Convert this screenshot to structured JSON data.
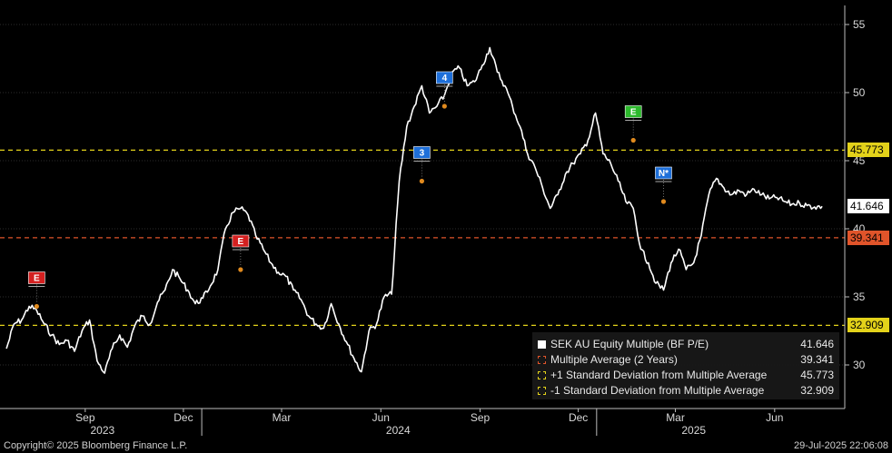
{
  "chart_data": {
    "type": "line",
    "y_ticks": [
      30,
      35,
      40,
      45,
      50,
      55
    ],
    "ylim": [
      26.8,
      56.4
    ],
    "x_month_labels": [
      "Sep",
      "Dec",
      "Mar",
      "Jun",
      "Sep",
      "Dec",
      "Mar",
      "Jun"
    ],
    "x_year_labels": [
      "2023",
      "2024",
      "2025"
    ],
    "colors": {
      "line": "#ffffff",
      "average": "#e0542a",
      "std": "#e3d21a",
      "current_tag": "#ffffff",
      "average_tag": "#e0542a",
      "plus_std_tag": "#e3d21a",
      "minus_std_tag": "#e3d21a"
    },
    "series": [
      {
        "name": "SEK AU Equity Multiple (BF P/E)",
        "x": [
          "2023-07-04",
          "2023-07-11",
          "2023-07-18",
          "2023-07-25",
          "2023-08-01",
          "2023-08-08",
          "2023-08-15",
          "2023-08-22",
          "2023-08-29",
          "2023-09-05",
          "2023-09-12",
          "2023-09-19",
          "2023-09-26",
          "2023-10-03",
          "2023-10-10",
          "2023-10-17",
          "2023-10-24",
          "2023-10-31",
          "2023-11-07",
          "2023-11-14",
          "2023-11-21",
          "2023-11-28",
          "2023-12-05",
          "2023-12-12",
          "2023-12-19",
          "2023-12-26",
          "2024-01-02",
          "2024-01-09",
          "2024-01-16",
          "2024-01-23",
          "2024-01-30",
          "2024-02-06",
          "2024-02-13",
          "2024-02-20",
          "2024-02-27",
          "2024-03-05",
          "2024-03-12",
          "2024-03-19",
          "2024-03-26",
          "2024-04-02",
          "2024-04-09",
          "2024-04-16",
          "2024-04-23",
          "2024-04-30",
          "2024-05-07",
          "2024-05-14",
          "2024-05-21",
          "2024-05-28",
          "2024-06-04",
          "2024-06-11",
          "2024-06-18",
          "2024-06-25",
          "2024-07-02",
          "2024-07-09",
          "2024-07-16",
          "2024-07-23",
          "2024-07-30",
          "2024-08-06",
          "2024-08-13",
          "2024-08-20",
          "2024-08-27",
          "2024-09-03",
          "2024-09-10",
          "2024-09-17",
          "2024-09-24",
          "2024-10-01",
          "2024-10-08",
          "2024-10-15",
          "2024-10-22",
          "2024-10-29",
          "2024-11-05",
          "2024-11-12",
          "2024-11-19",
          "2024-11-26",
          "2024-12-03",
          "2024-12-10",
          "2024-12-17",
          "2024-12-24",
          "2024-12-31",
          "2025-01-07",
          "2025-01-14",
          "2025-01-21",
          "2025-01-28",
          "2025-02-04",
          "2025-02-11",
          "2025-02-18",
          "2025-02-25",
          "2025-03-04",
          "2025-03-11",
          "2025-03-18",
          "2025-03-25",
          "2025-04-01",
          "2025-04-08",
          "2025-04-15",
          "2025-04-22",
          "2025-04-29",
          "2025-05-06",
          "2025-05-13",
          "2025-05-20",
          "2025-05-27",
          "2025-06-03",
          "2025-06-10",
          "2025-06-17",
          "2025-06-24",
          "2025-07-01",
          "2025-07-08",
          "2025-07-15",
          "2025-07-22",
          "2025-07-29"
        ],
        "y": [
          31.2,
          33.0,
          33.3,
          34.3,
          34.0,
          33.0,
          32.2,
          31.5,
          31.8,
          31.0,
          32.5,
          33.3,
          30.3,
          29.4,
          31.2,
          32.2,
          31.3,
          32.9,
          33.6,
          33.0,
          34.6,
          35.5,
          37.0,
          36.3,
          35.5,
          34.5,
          34.9,
          35.8,
          37.0,
          40.0,
          41.2,
          41.5,
          41.0,
          39.5,
          38.5,
          37.5,
          36.8,
          36.5,
          35.5,
          34.8,
          33.6,
          33.0,
          32.7,
          34.5,
          33.0,
          31.7,
          30.5,
          29.5,
          32.5,
          33.0,
          35.0,
          35.2,
          43.5,
          47.5,
          49.0,
          50.5,
          48.5,
          49.0,
          49.8,
          51.5,
          51.8,
          50.5,
          50.8,
          52.0,
          53.3,
          51.5,
          50.5,
          49.0,
          47.5,
          45.5,
          44.5,
          43.0,
          41.5,
          42.5,
          44.0,
          44.8,
          45.5,
          46.5,
          48.5,
          45.5,
          44.8,
          43.5,
          42.0,
          41.5,
          38.5,
          37.5,
          36.0,
          35.5,
          37.5,
          38.5,
          37.0,
          37.5,
          39.5,
          42.5,
          43.7,
          43.0,
          42.5,
          42.8,
          42.5,
          42.9,
          42.5,
          42.2,
          42.3,
          42.0,
          41.8,
          41.9,
          41.7,
          41.6,
          41.646
        ]
      }
    ],
    "reference_lines": [
      {
        "name": "Multiple Average (2 Years)",
        "value": 39.341,
        "label": "39.341"
      },
      {
        "name": "+1 Standard Deviation from Multiple Average",
        "value": 45.773,
        "label": "45.773"
      },
      {
        "name": "-1 Standard Deviation from Multiple Average",
        "value": 32.909,
        "label": "32.909"
      }
    ],
    "current_value_label": "41.646",
    "event_markers": [
      {
        "label": "E",
        "color": "#d42020",
        "date": "2023-08-01",
        "value": 34.3
      },
      {
        "label": "E",
        "color": "#d42020",
        "date": "2024-02-06",
        "value": 37.0
      },
      {
        "label": "3",
        "color": "#1e6fd9",
        "date": "2024-07-23",
        "value": 43.5
      },
      {
        "label": "4",
        "color": "#1e6fd9",
        "date": "2024-08-13",
        "value": 49.0
      },
      {
        "label": "E",
        "color": "#2cb92c",
        "date": "2025-02-04",
        "value": 46.5
      },
      {
        "label": "N*",
        "color": "#1e6fd9",
        "date": "2025-03-04",
        "value": 42.0
      }
    ],
    "legend": {
      "placement": "bottom-right",
      "entries": [
        {
          "label": "SEK AU Equity Multiple (BF P/E)",
          "value": "41.646",
          "color": "#ffffff"
        },
        {
          "label": "Multiple Average (2 Years)",
          "value": "39.341",
          "color": "#e0542a"
        },
        {
          "label": "+1 Standard Deviation from Multiple Average",
          "value": "45.773",
          "color": "#e3d21a"
        },
        {
          "label": "-1 Standard Deviation from Multiple Average",
          "value": "32.909",
          "color": "#e3d21a"
        }
      ]
    }
  },
  "footer": {
    "copyright": "Copyright© 2025 Bloomberg Finance L.P.",
    "timestamp": "29-Jul-2025 22:06:08"
  }
}
